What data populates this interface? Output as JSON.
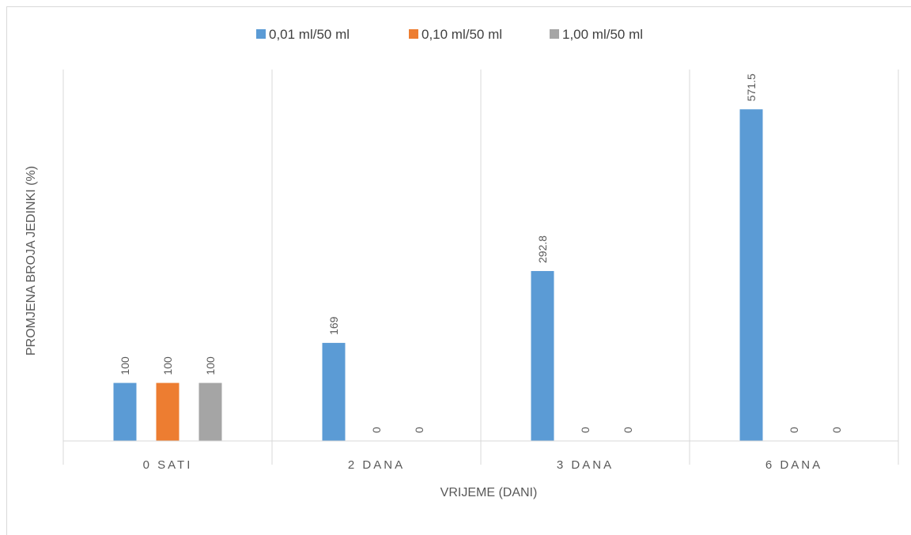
{
  "chart_data": {
    "type": "bar",
    "categories": [
      "0 SATI",
      "2 DANA",
      "3 DANA",
      "6 DANA"
    ],
    "series": [
      {
        "name": "0,01 ml/50 ml",
        "values": [
          100,
          169,
          292.8,
          571.5
        ]
      },
      {
        "name": "0,10 ml/50 ml",
        "values": [
          100,
          0,
          0,
          0
        ]
      },
      {
        "name": "1,00 ml/50 ml",
        "values": [
          100,
          0,
          0,
          0
        ]
      }
    ],
    "data_labels": [
      [
        "100",
        "169",
        "292.8",
        "571.5"
      ],
      [
        "100",
        "0",
        "0",
        "0"
      ],
      [
        "100",
        "0",
        "0",
        "0"
      ]
    ],
    "xlabel": "VRIJEME (DANI)",
    "ylabel": "PROMJENA BROJA JEDINKI (%)",
    "ylim": [
      0,
      640
    ],
    "y_axis_visible": false,
    "grid": "vertical category separators",
    "legend_position": "top",
    "colors": [
      "#5B9BD5",
      "#ED7D31",
      "#A5A5A5"
    ]
  }
}
